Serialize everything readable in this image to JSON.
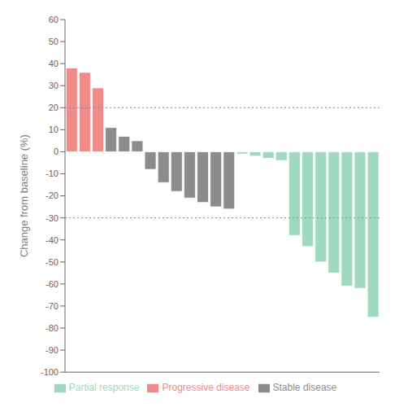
{
  "chart_data": {
    "type": "bar",
    "ylabel": "Change from baseline (%)",
    "categories": [
      null,
      null,
      null,
      null,
      null,
      null,
      null,
      null,
      null,
      null,
      null,
      null,
      null,
      null,
      null,
      null,
      null,
      null,
      null,
      null,
      null,
      null,
      null,
      null
    ],
    "series": [
      {
        "name": "Progressive disease",
        "color": "#F08B8B",
        "values": [
          38,
          36,
          29,
          null,
          null,
          null,
          null,
          null,
          null,
          null,
          null,
          null,
          null,
          null,
          null,
          null,
          null,
          null,
          null,
          null,
          null,
          null,
          null,
          null
        ]
      },
      {
        "name": "Stable disease",
        "color": "#8C8C8C",
        "values": [
          null,
          null,
          null,
          11,
          7,
          5,
          -8,
          -14,
          -18,
          -21,
          -23,
          -25,
          -26,
          null,
          null,
          null,
          null,
          null,
          null,
          null,
          null,
          null,
          null,
          null
        ]
      },
      {
        "name": "Partial response",
        "color": "#9ED9C0",
        "values": [
          null,
          null,
          null,
          null,
          null,
          null,
          null,
          null,
          null,
          null,
          null,
          null,
          null,
          -1,
          -2,
          -3,
          -4,
          -38,
          -43,
          -50,
          -55,
          -61,
          -62,
          -75
        ]
      }
    ],
    "stacked": true,
    "ylim": [
      -100,
      60
    ],
    "yticks": [
      -100,
      -90,
      -80,
      -70,
      -60,
      -50,
      -40,
      -30,
      -20,
      -10,
      0,
      10,
      20,
      30,
      40,
      50,
      60
    ],
    "hlines": [
      20,
      -30
    ],
    "grid": false,
    "legend": "bottom",
    "tick_labels": "y"
  }
}
